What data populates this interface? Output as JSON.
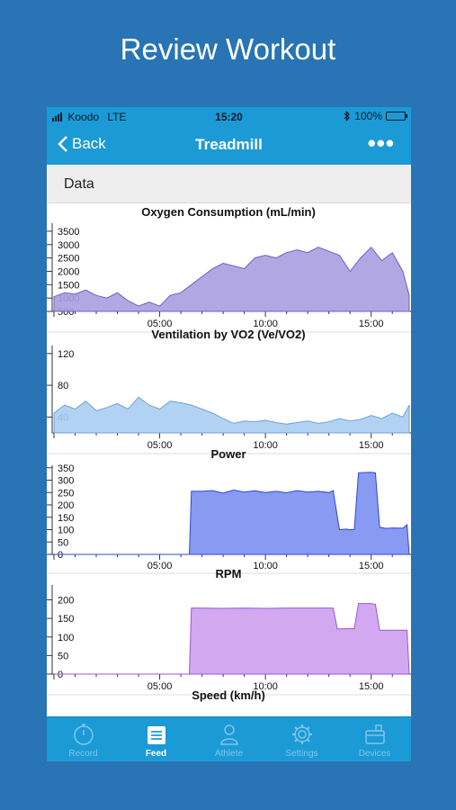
{
  "headline": "Review Workout",
  "status_bar": {
    "carrier": "Koodo",
    "network": "LTE",
    "time": "15:20",
    "bluetooth": "bluetooth-icon",
    "battery": "100%"
  },
  "nav": {
    "back_label": "Back",
    "title": "Treadmill",
    "more": "•••"
  },
  "section_header": "Data",
  "colors": {
    "brand": "#1b9ad6",
    "page_bg": "#2874b4",
    "oxygen": "#a99de0",
    "ventilation": "#aacdf2",
    "power": "#7b8ff0",
    "rpm": "#cd9ff0",
    "speed": "#8fd48f"
  },
  "x_ticks": [
    "05:00",
    "10:00",
    "15:00"
  ],
  "chart_data": [
    {
      "type": "area",
      "title": "Oxygen Consumption (mL/min)",
      "yticks": [
        "500",
        "1000",
        "1500",
        "2000",
        "2500",
        "3000",
        "3500"
      ],
      "ylim": [
        500,
        3800
      ],
      "xlim_minutes": [
        0,
        16.8
      ],
      "xticks": [
        "05:00",
        "10:00",
        "15:00"
      ],
      "series": [
        {
          "x": [
            0,
            0.5,
            1,
            1.5,
            2,
            2.5,
            3,
            3.5,
            4,
            4.5,
            5,
            5.5,
            6,
            6.5,
            7,
            7.5,
            8,
            8.5,
            9,
            9.5,
            10,
            10.5,
            11,
            11.5,
            12,
            12.5,
            13,
            13.5,
            14,
            14.5,
            15,
            15.5,
            16,
            16.5,
            16.8
          ],
          "y": [
            1050,
            1200,
            1150,
            1300,
            1100,
            1000,
            1200,
            900,
            700,
            850,
            700,
            1100,
            1200,
            1500,
            1800,
            2100,
            2300,
            2200,
            2100,
            2500,
            2600,
            2500,
            2700,
            2800,
            2700,
            2900,
            2750,
            2600,
            2000,
            2500,
            2900,
            2400,
            2700,
            2000,
            1100
          ]
        }
      ]
    },
    {
      "type": "area",
      "title": "Ventilation by VO2  (Ve/VO2)",
      "yticks": [
        "40",
        "80",
        "120"
      ],
      "ylim": [
        20,
        130
      ],
      "xlim_minutes": [
        0,
        16.8
      ],
      "xticks": [
        "05:00",
        "10:00",
        "15:00"
      ],
      "series": [
        {
          "x": [
            0,
            0.5,
            1,
            1.5,
            2,
            2.5,
            3,
            3.5,
            4,
            4.5,
            5,
            5.5,
            6,
            6.5,
            7,
            7.5,
            8,
            8.5,
            9,
            9.5,
            10,
            10.5,
            11,
            11.5,
            12,
            12.5,
            13,
            13.5,
            14,
            14.5,
            15,
            15.5,
            16,
            16.5,
            16.8
          ],
          "y": [
            45,
            55,
            50,
            60,
            48,
            52,
            57,
            50,
            65,
            55,
            50,
            60,
            58,
            55,
            50,
            45,
            38,
            32,
            35,
            34,
            36,
            33,
            31,
            33,
            35,
            32,
            34,
            38,
            35,
            37,
            42,
            38,
            45,
            40,
            55
          ]
        }
      ]
    },
    {
      "type": "area",
      "title": "Power",
      "yticks": [
        "0",
        "50",
        "100",
        "150",
        "200",
        "250",
        "300",
        "350"
      ],
      "ylim": [
        0,
        360
      ],
      "xlim_minutes": [
        0,
        16.8
      ],
      "xticks": [
        "05:00",
        "10:00",
        "15:00"
      ],
      "series": [
        {
          "x": [
            0,
            6.4,
            6.5,
            7,
            7.5,
            8,
            8.5,
            9,
            9.5,
            10,
            10.5,
            11,
            11.5,
            12,
            12.5,
            13,
            13.2,
            13.5,
            13.8,
            14,
            14.2,
            14.4,
            15,
            15.2,
            15.4,
            15.7,
            16,
            16.5,
            16.7,
            16.8
          ],
          "y": [
            0,
            0,
            255,
            255,
            258,
            248,
            260,
            252,
            257,
            250,
            255,
            249,
            258,
            252,
            255,
            250,
            258,
            100,
            102,
            100,
            100,
            330,
            332,
            330,
            110,
            105,
            107,
            106,
            120,
            0
          ]
        }
      ]
    },
    {
      "type": "area",
      "title": "RPM",
      "yticks": [
        "0",
        "50",
        "100",
        "150",
        "200"
      ],
      "ylim": [
        0,
        240
      ],
      "xlim_minutes": [
        0,
        16.8
      ],
      "xticks": [
        "05:00",
        "10:00",
        "15:00"
      ],
      "series": [
        {
          "x": [
            0,
            6.4,
            6.5,
            7,
            8,
            9,
            10,
            11,
            12,
            13,
            13.2,
            13.4,
            13.6,
            14,
            14.2,
            14.4,
            15,
            15.2,
            15.4,
            15.7,
            16,
            16.7,
            16.8
          ],
          "y": [
            0,
            0,
            178,
            178,
            177,
            178,
            177,
            178,
            178,
            178,
            178,
            122,
            122,
            123,
            122,
            190,
            190,
            188,
            118,
            118,
            118,
            118,
            0
          ]
        }
      ]
    },
    {
      "type": "area",
      "title": "Speed (km/h)"
    }
  ],
  "tabs": [
    {
      "label": "Record",
      "icon": "stopwatch-icon",
      "active": false
    },
    {
      "label": "Feed",
      "icon": "feed-list-icon",
      "active": true
    },
    {
      "label": "Athlete",
      "icon": "athlete-icon",
      "active": false
    },
    {
      "label": "Settings",
      "icon": "gear-icon",
      "active": false
    },
    {
      "label": "Devices",
      "icon": "devices-icon",
      "active": false
    }
  ]
}
